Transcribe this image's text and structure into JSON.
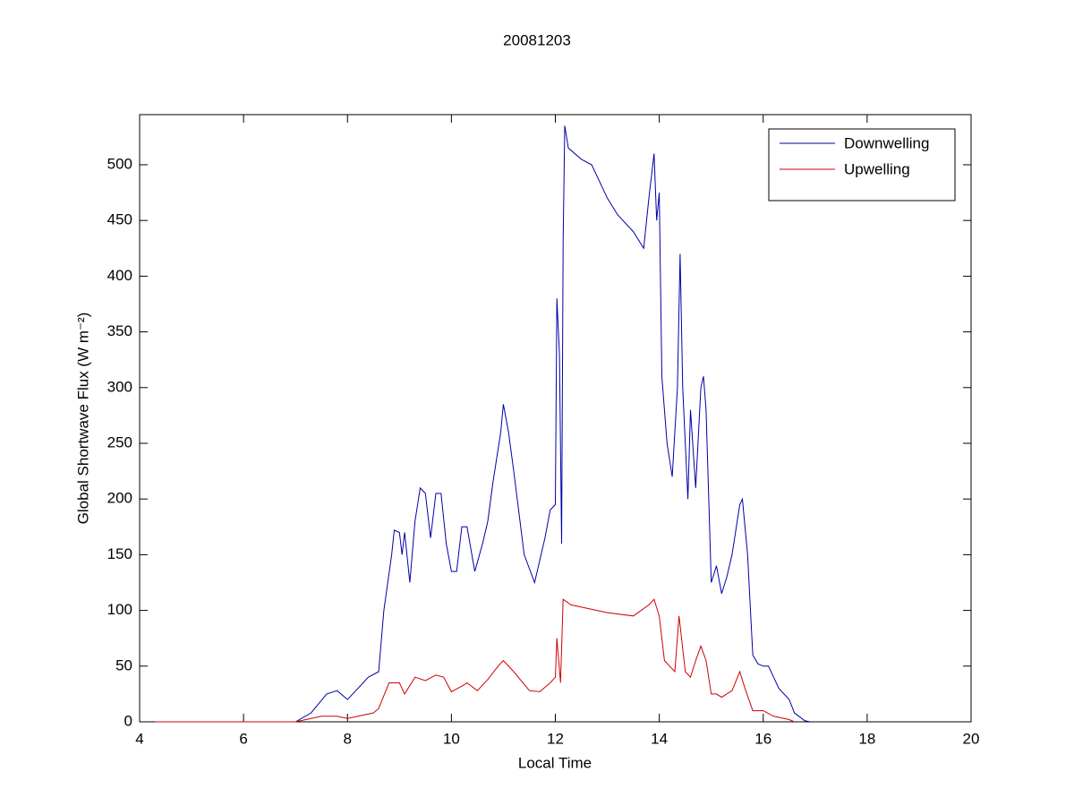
{
  "chart_data": {
    "type": "line",
    "title": "20081203",
    "xlabel": "Local Time",
    "ylabel": "Global Shortwave Flux (W m⁻²)",
    "xlim": [
      4,
      20
    ],
    "xticks": [
      4,
      6,
      8,
      10,
      12,
      14,
      16,
      18,
      20
    ],
    "ylim": [
      0,
      545
    ],
    "yticks": [
      0,
      50,
      100,
      150,
      200,
      250,
      300,
      350,
      400,
      450,
      500
    ],
    "legend": "upper right",
    "series": [
      {
        "name": "Downwelling",
        "color": "#0000a8",
        "x": [
          4.3,
          7.0,
          7.3,
          7.6,
          7.8,
          8.0,
          8.2,
          8.4,
          8.6,
          8.7,
          8.85,
          8.9,
          9.0,
          9.05,
          9.1,
          9.2,
          9.3,
          9.4,
          9.5,
          9.6,
          9.7,
          9.8,
          9.9,
          10.0,
          10.1,
          10.2,
          10.3,
          10.45,
          10.6,
          10.7,
          10.8,
          10.95,
          11.0,
          11.1,
          11.2,
          11.4,
          11.6,
          11.8,
          11.9,
          12.0,
          12.03,
          12.08,
          12.12,
          12.15,
          12.18,
          12.25,
          12.5,
          12.7,
          13.0,
          13.2,
          13.5,
          13.7,
          13.8,
          13.9,
          13.95,
          14.0,
          14.05,
          14.15,
          14.25,
          14.35,
          14.4,
          14.45,
          14.55,
          14.6,
          14.7,
          14.8,
          14.85,
          14.9,
          15.0,
          15.1,
          15.2,
          15.3,
          15.4,
          15.55,
          15.6,
          15.7,
          15.8,
          15.9,
          16.0,
          16.1,
          16.2,
          16.3,
          16.5,
          16.6,
          16.8,
          16.9
        ],
        "values": [
          0,
          0,
          8,
          25,
          28,
          20,
          30,
          40,
          45,
          100,
          150,
          172,
          170,
          150,
          170,
          125,
          180,
          210,
          205,
          165,
          205,
          205,
          160,
          135,
          135,
          175,
          175,
          135,
          160,
          180,
          215,
          260,
          285,
          260,
          225,
          150,
          125,
          165,
          190,
          195,
          380,
          330,
          160,
          430,
          535,
          515,
          505,
          500,
          470,
          455,
          440,
          425,
          470,
          510,
          450,
          475,
          310,
          250,
          220,
          300,
          420,
          300,
          200,
          280,
          210,
          300,
          310,
          280,
          125,
          140,
          115,
          130,
          150,
          195,
          200,
          150,
          60,
          52,
          50,
          50,
          40,
          30,
          20,
          8,
          1,
          0
        ]
      },
      {
        "name": "Upwelling",
        "color": "#d00000",
        "x": [
          4.3,
          7.0,
          7.5,
          7.8,
          8.0,
          8.5,
          8.6,
          8.8,
          9.0,
          9.1,
          9.3,
          9.5,
          9.7,
          9.85,
          10.0,
          10.2,
          10.3,
          10.5,
          10.7,
          10.9,
          11.0,
          11.2,
          11.5,
          11.7,
          11.9,
          12.0,
          12.03,
          12.1,
          12.15,
          12.3,
          12.8,
          13.0,
          13.5,
          13.8,
          13.9,
          14.0,
          14.1,
          14.2,
          14.3,
          14.38,
          14.5,
          14.6,
          14.7,
          14.8,
          14.9,
          15.0,
          15.1,
          15.2,
          15.4,
          15.55,
          15.65,
          15.8,
          16.0,
          16.2,
          16.5,
          16.6
        ],
        "values": [
          0,
          0,
          5,
          5,
          3,
          8,
          12,
          35,
          35,
          25,
          40,
          37,
          42,
          40,
          27,
          32,
          35,
          28,
          38,
          50,
          55,
          45,
          28,
          27,
          35,
          40,
          75,
          35,
          110,
          105,
          100,
          98,
          95,
          105,
          110,
          95,
          55,
          50,
          45,
          95,
          45,
          40,
          55,
          68,
          55,
          25,
          25,
          22,
          28,
          45,
          30,
          10,
          10,
          5,
          2,
          0
        ]
      }
    ]
  }
}
